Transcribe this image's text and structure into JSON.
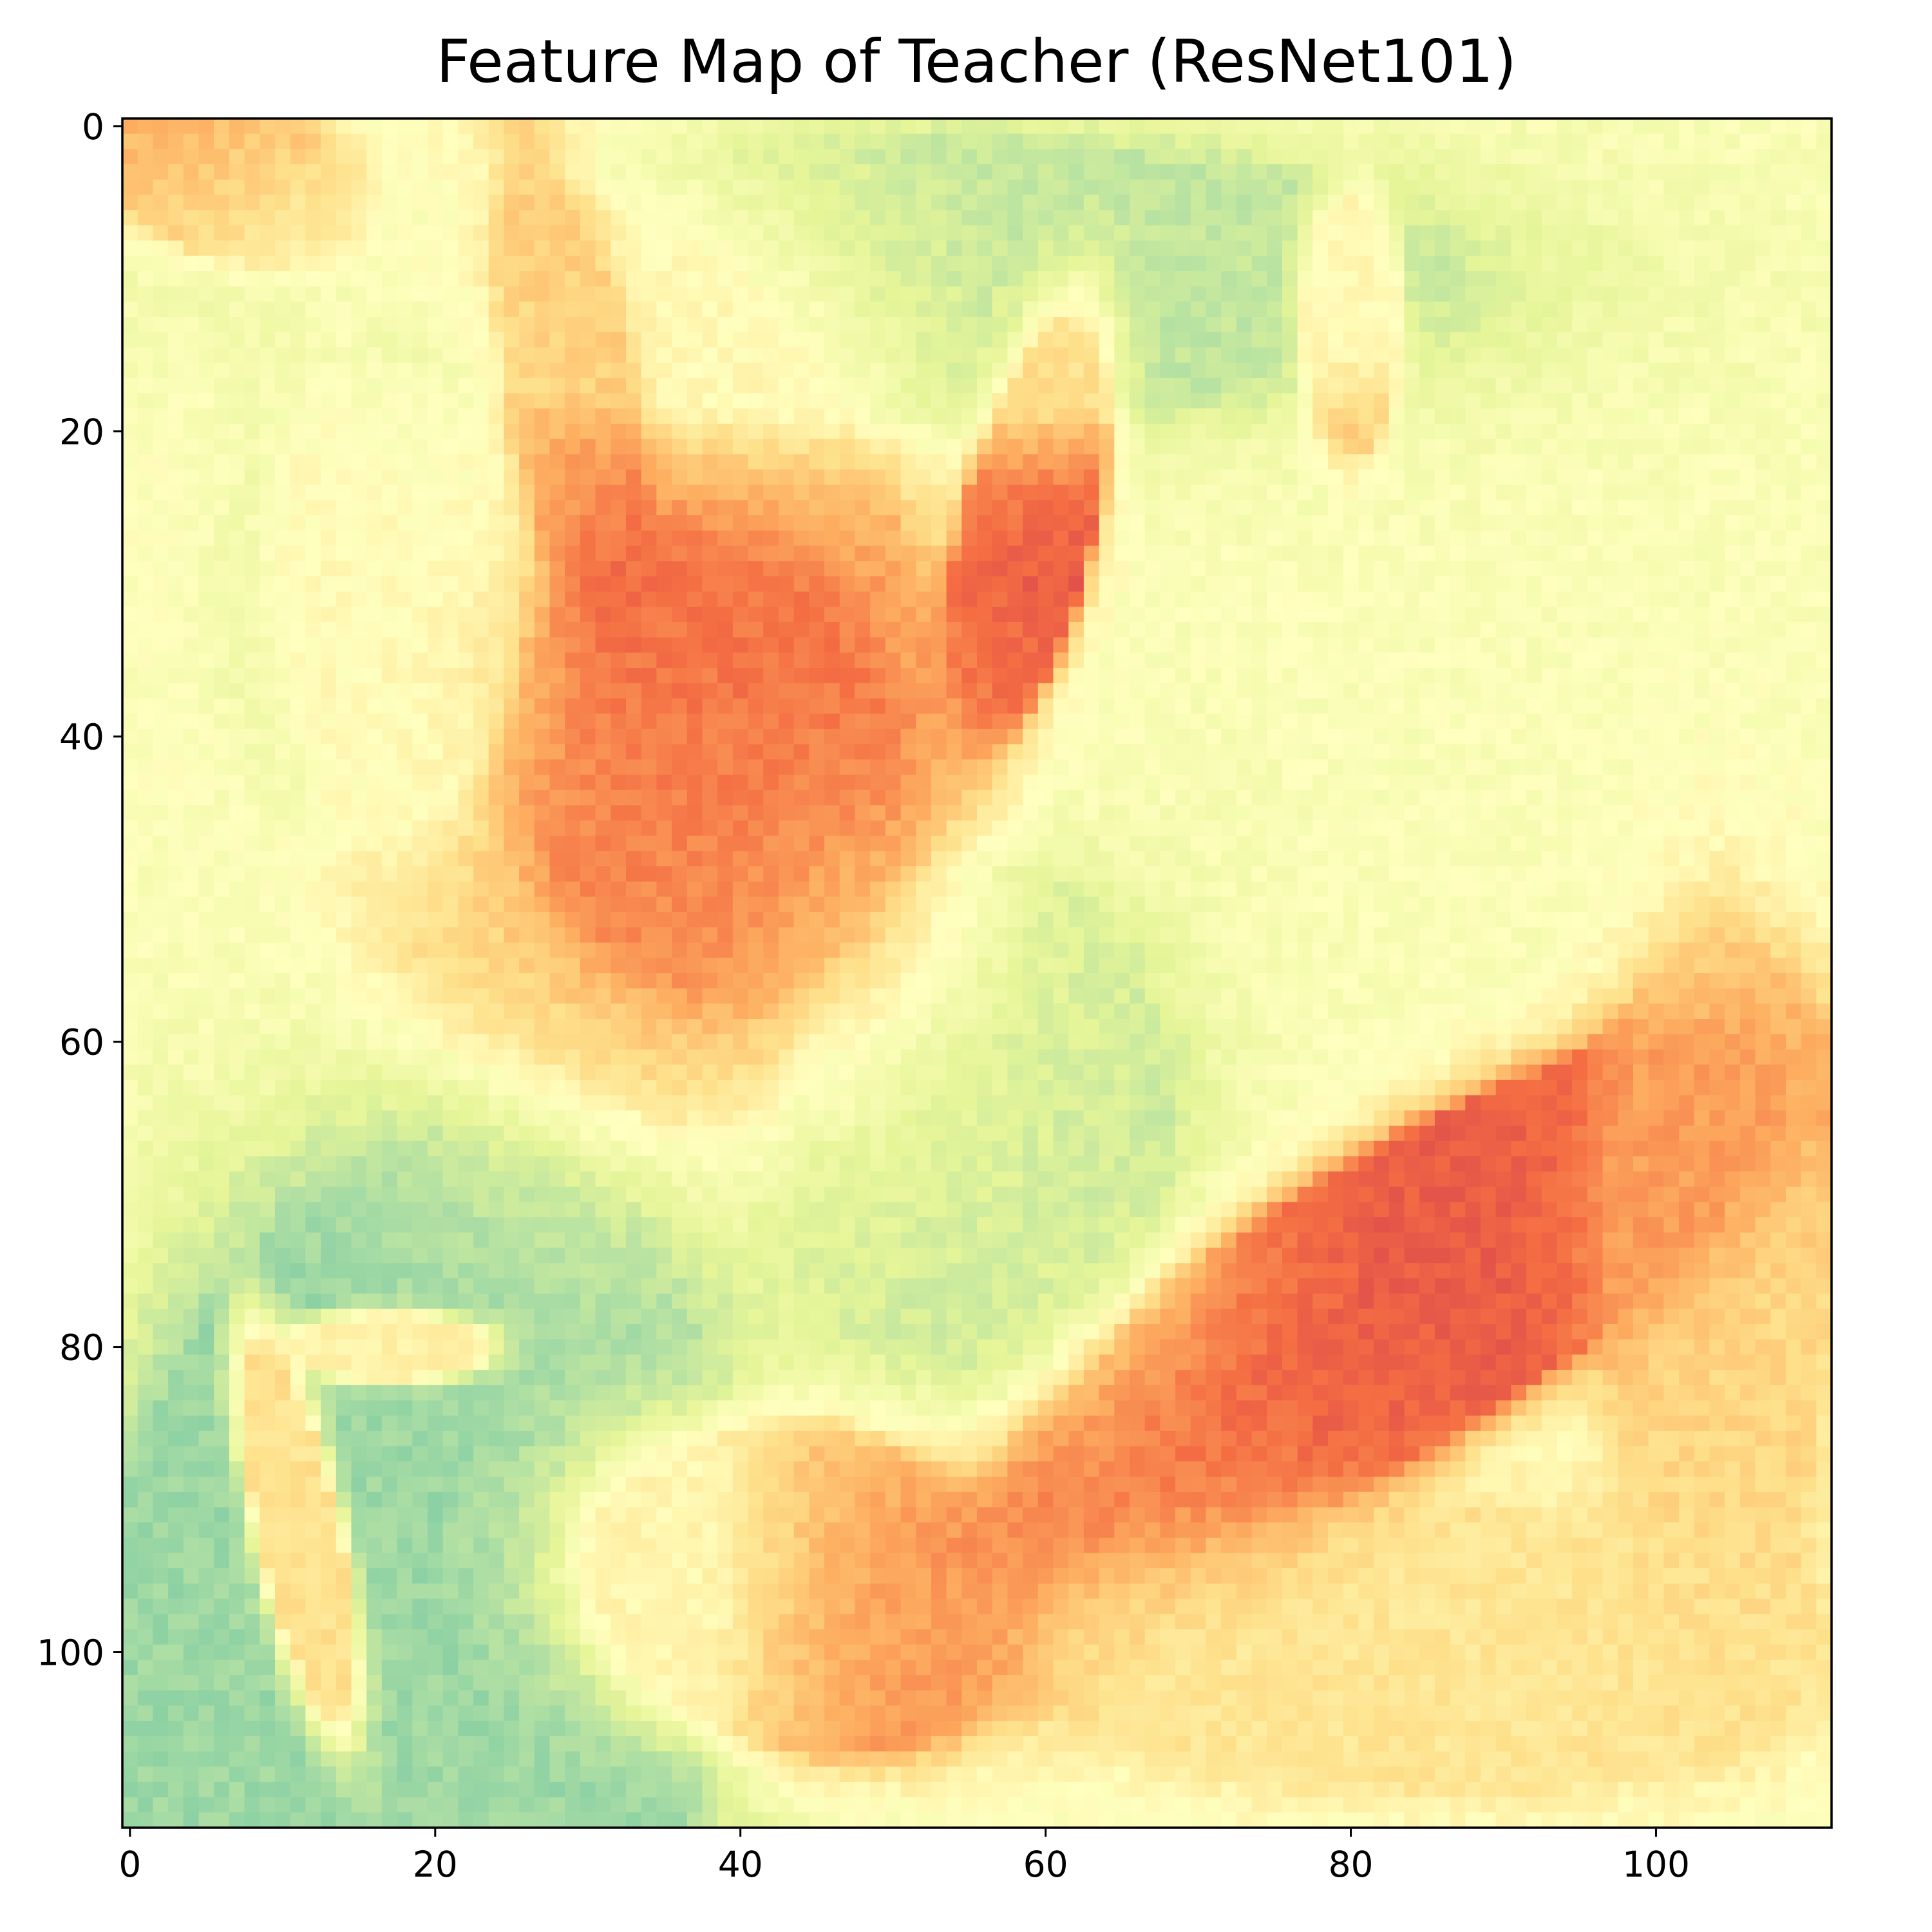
{
  "chart_data": {
    "type": "heatmap",
    "title": "Feature Map of Teacher (ResNet101)",
    "xlabel": "",
    "ylabel": "",
    "xlim": [
      -0.5,
      111.5
    ],
    "ylim": [
      111.5,
      -0.5
    ],
    "grid": false,
    "colormap": "Spectral",
    "x_ticks": [
      0,
      20,
      40,
      60,
      80,
      100
    ],
    "y_ticks": [
      0,
      20,
      40,
      60,
      80,
      100
    ],
    "x_tick_labels": [
      "0",
      "20",
      "40",
      "60",
      "80",
      "100"
    ],
    "y_tick_labels": [
      "0",
      "20",
      "40",
      "60",
      "80",
      "100"
    ],
    "grid_size": [
      112,
      112
    ],
    "value_range": [
      0,
      1
    ],
    "background_value": 0.52,
    "regions": [
      {
        "shape": "ellipse",
        "cx": 38,
        "cy": 42,
        "rx": 12,
        "ry": 15,
        "rot": -25,
        "value": 0.13
      },
      {
        "shape": "ellipse",
        "cx": 31,
        "cy": 34,
        "rx": 20,
        "ry": 29,
        "rot": -15,
        "value": 0.3,
        "sigma": 0.22
      },
      {
        "shape": "ellipse",
        "cx": 29,
        "cy": 18,
        "rx": 4,
        "ry": 15,
        "rot": -10,
        "value": 0.13
      },
      {
        "shape": "ellipse",
        "cx": 59,
        "cy": 26,
        "rx": 4,
        "ry": 13,
        "rot": 12,
        "value": 0.15
      },
      {
        "shape": "ellipse",
        "cx": 83,
        "cy": 77,
        "rx": 28,
        "ry": 9,
        "rot": -32,
        "value": 0.17
      },
      {
        "shape": "ellipse",
        "cx": 44,
        "cy": 96,
        "rx": 14,
        "ry": 10,
        "rot": 15,
        "value": 0.22
      },
      {
        "shape": "ellipse",
        "cx": 11,
        "cy": 92,
        "rx": 2.5,
        "ry": 12,
        "rot": -12,
        "value": 0.1
      },
      {
        "shape": "ellipse",
        "cx": 17,
        "cy": 80,
        "rx": 6,
        "ry": 2,
        "rot": 0,
        "value": 0.2
      },
      {
        "shape": "ellipse",
        "cx": 80,
        "cy": 13,
        "rx": 3,
        "ry": 8,
        "rot": 0,
        "value": 0.3
      },
      {
        "shape": "ellipse",
        "cx": 6,
        "cy": 3,
        "rx": 9,
        "ry": 5,
        "rot": 20,
        "value": 0.3
      },
      {
        "shape": "ellipse",
        "cx": 50,
        "cy": 10,
        "rx": 35,
        "ry": 9,
        "rot": 0,
        "value": 0.66,
        "sigma": 0.3
      },
      {
        "shape": "ellipse",
        "cx": 16,
        "cy": 30,
        "rx": 9,
        "ry": 16,
        "rot": 0,
        "value": 0.68,
        "sigma": 0.3
      },
      {
        "shape": "ellipse",
        "cx": 18,
        "cy": 100,
        "rx": 20,
        "ry": 33,
        "rot": 10,
        "value": 0.72,
        "sigma": 0.25
      },
      {
        "shape": "ellipse",
        "cx": 56,
        "cy": 65,
        "rx": 12,
        "ry": 16,
        "rot": 0,
        "value": 0.64,
        "sigma": 0.3
      },
      {
        "shape": "ellipse",
        "cx": 85,
        "cy": 100,
        "rx": 25,
        "ry": 9,
        "rot": 0,
        "value": 0.42,
        "sigma": 0.25
      },
      {
        "shape": "ellipse",
        "cx": 104,
        "cy": 75,
        "rx": 7,
        "ry": 22,
        "rot": 0,
        "value": 0.38,
        "sigma": 0.25
      }
    ]
  }
}
